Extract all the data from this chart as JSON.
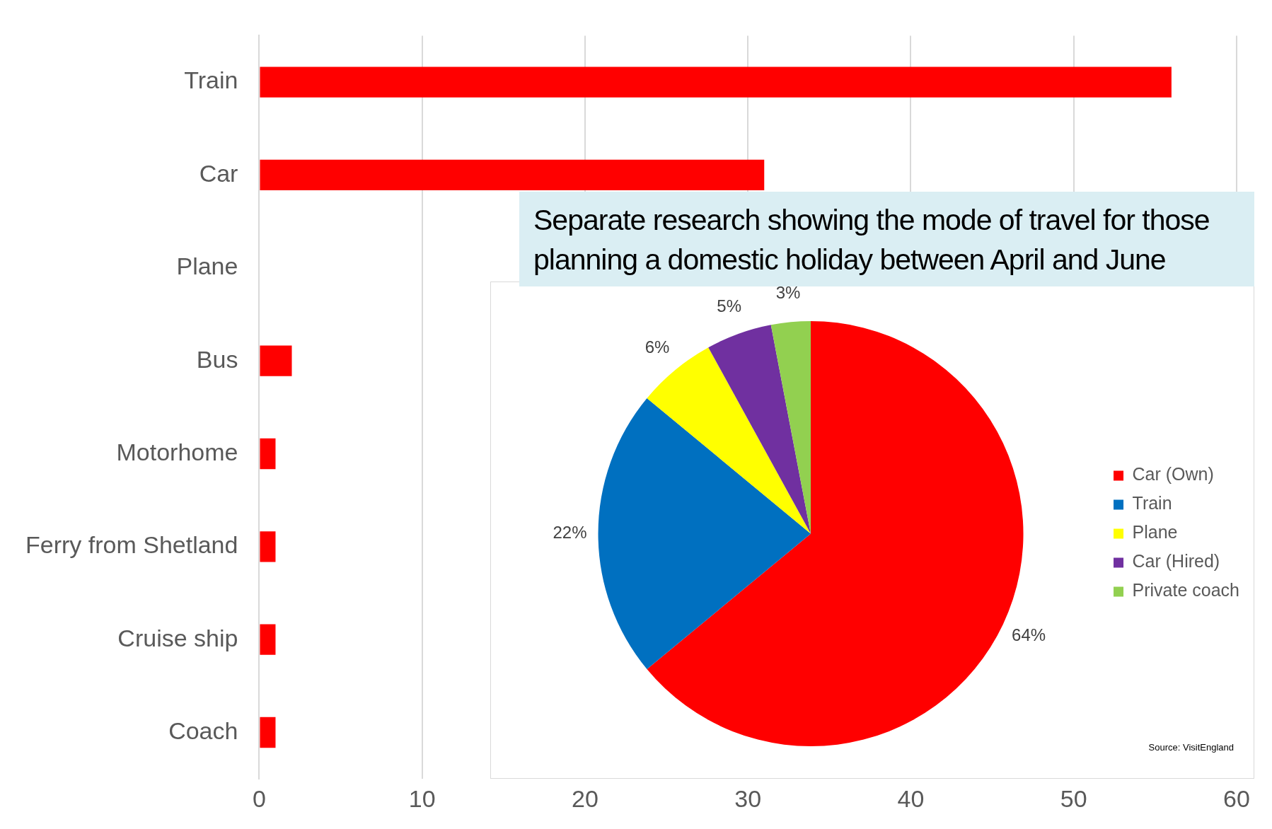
{
  "chart_data": [
    {
      "type": "bar",
      "orientation": "horizontal",
      "categories": [
        "Train",
        "Car",
        "Plane",
        "Bus",
        "Motorhome",
        "Ferry from Shetland",
        "Cruise ship",
        "Coach"
      ],
      "values": [
        56,
        31,
        null,
        2,
        1,
        1,
        1,
        1
      ],
      "color": "#ff0000",
      "xlim": [
        0,
        60
      ],
      "xticks": [
        0,
        10,
        20,
        30,
        40,
        50,
        60
      ],
      "grid": "x",
      "legend": false
    },
    {
      "type": "pie",
      "title": "Separate research showing the mode of travel for those planning a domestic holiday between April and June",
      "categories": [
        "Car (Own)",
        "Train",
        "Plane",
        "Car (Hired)",
        "Private coach"
      ],
      "values": [
        64,
        22,
        6,
        5,
        3
      ],
      "colors": [
        "#ff0000",
        "#0070c0",
        "#ffff00",
        "#7030a0",
        "#92d050"
      ],
      "value_labels": [
        "64%",
        "22%",
        "6%",
        "5%",
        "3%"
      ],
      "legend": "right",
      "annotations": [
        "Source: VisitEngland"
      ]
    }
  ]
}
